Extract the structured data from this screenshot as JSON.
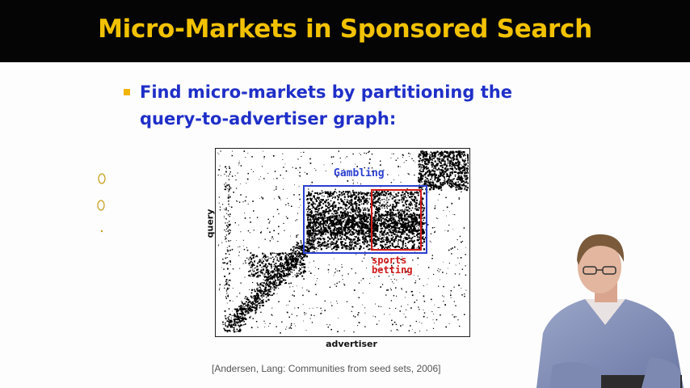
{
  "slide": {
    "title": "Micro-Markets in Sponsored Search",
    "bullet_line1": "Find micro-markets by partitioning the",
    "bullet_line2": "query-to-advertiser graph:",
    "citation": "[Andersen, Lang: Communities from seed sets, 2006]"
  },
  "figure": {
    "y_axis_label": "query",
    "x_axis_label": "advertiser",
    "box_gambling_label": "Gambling",
    "box_sports_line1": "sports",
    "box_sports_line2": "betting"
  },
  "colors": {
    "title_bar": "#050505",
    "title_text": "#f2c200",
    "bullet_text": "#1f2fc8",
    "bullet_marker": "#f2b400",
    "gambling_box": "#2a3fcf",
    "sports_box": "#d21b1b"
  }
}
